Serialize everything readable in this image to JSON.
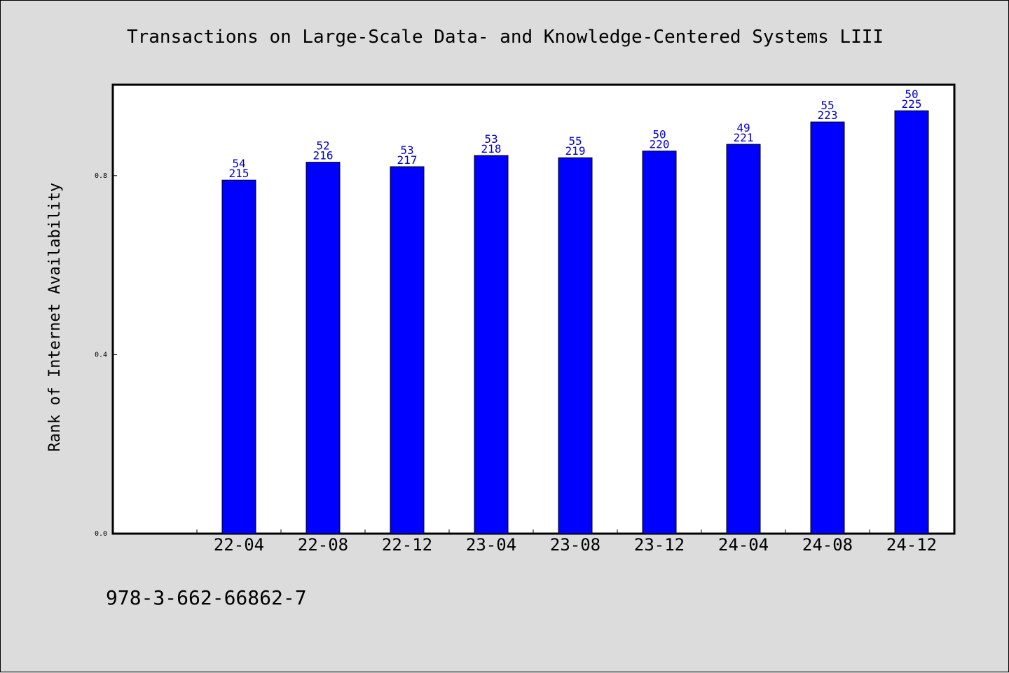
{
  "chart_data": {
    "type": "bar",
    "title": "Transactions on Large-Scale Data- and Knowledge-Centered Systems LIII",
    "xlabel": "",
    "ylabel": "Rank of Internet Availability",
    "categories": [
      "22-04",
      "22-08",
      "22-12",
      "23-04",
      "23-08",
      "23-12",
      "24-04",
      "24-08",
      "24-12"
    ],
    "values": [
      0.79,
      0.83,
      0.82,
      0.845,
      0.84,
      0.855,
      0.87,
      0.92,
      0.945
    ],
    "data_labels": [
      [
        "54",
        "215"
      ],
      [
        "52",
        "216"
      ],
      [
        "53",
        "217"
      ],
      [
        "53",
        "218"
      ],
      [
        "55",
        "219"
      ],
      [
        "50",
        "220"
      ],
      [
        "49",
        "221"
      ],
      [
        "55",
        "223"
      ],
      [
        "50",
        "225"
      ]
    ],
    "yticks": [
      "0.0",
      "0.4",
      "0.8"
    ],
    "ytick_values": [
      0.0,
      0.4,
      0.8
    ],
    "ylim": [
      0,
      1.0
    ],
    "grid": false,
    "legend": "none",
    "bar_color": "#0000ff",
    "label_color": "#0000cc",
    "background_color": "#dcdcdc",
    "plot_background": "#ffffff"
  },
  "footer": {
    "text": "978-3-662-66862-7"
  }
}
